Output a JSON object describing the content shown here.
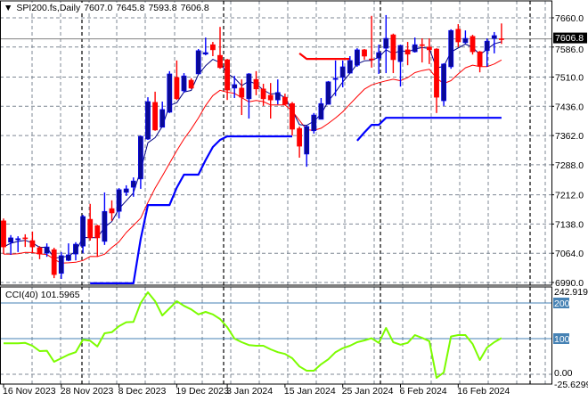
{
  "header": {
    "arrow": "▼",
    "symbol": "SPI200.fs,Daily",
    "open": "7607.0",
    "high": "7645.8",
    "low": "7593.8",
    "close": "7606.8"
  },
  "cci_panel": {
    "name": "CCI(40)",
    "value": "101.5965",
    "max_label": "242.9194",
    "min_label": "-25.6299",
    "zero_label": "0.00",
    "level_200": "200",
    "level_100": "100"
  },
  "current_price_label": "7606.8",
  "colors": {
    "bull": "#0a0a96",
    "bull_wick": "#0000ff",
    "bear": "#ff0000",
    "fast_line": "#000080",
    "slow_line": "#ff0000",
    "stop_blue": "#0000ff",
    "stop_red": "#ff0000",
    "cci": "#7cfc00",
    "level": "#4682b4",
    "grid": "#7f8894"
  },
  "chart_data": {
    "type": "candlestick",
    "title": "SPI200.fs,Daily",
    "ylim": [
      6990,
      7660
    ],
    "price_ticks": [
      "7660.0",
      "7586.0",
      "7510.0",
      "7436.0",
      "7362.0",
      "7288.0",
      "7212.0",
      "7138.0",
      "7064.0",
      "6990.0"
    ],
    "price_tick_values": [
      7660,
      7586,
      7510,
      7436,
      7362,
      7288,
      7212,
      7138,
      7064,
      6990
    ],
    "date_labels": [
      {
        "label": "16 Nov 2023",
        "index": 0
      },
      {
        "label": "28 Nov 2023",
        "index": 8
      },
      {
        "label": "8 Dec 2023",
        "index": 16
      },
      {
        "label": "19 Dec 2023",
        "index": 24
      },
      {
        "label": "3 Jan 2024",
        "index": 31
      },
      {
        "label": "15 Jan 2024",
        "index": 39
      },
      {
        "label": "25 Jan 2024",
        "index": 47
      },
      {
        "label": "6 Feb 2024",
        "index": 55
      },
      {
        "label": "16 Feb 2024",
        "index": 63
      }
    ],
    "candles_ohlc": [
      [
        7146,
        7152,
        7062,
        7080
      ],
      [
        7092,
        7110,
        7060,
        7103
      ],
      [
        7098,
        7107,
        7067,
        7101
      ],
      [
        7103,
        7112,
        7080,
        7101
      ],
      [
        7096,
        7119,
        7064,
        7080
      ],
      [
        7078,
        7082,
        7049,
        7062
      ],
      [
        7064,
        7089,
        7055,
        7080
      ],
      [
        7073,
        7078,
        7001,
        7010
      ],
      [
        7013,
        7067,
        6999,
        7058
      ],
      [
        7046,
        7089,
        7044,
        7060
      ],
      [
        7062,
        7092,
        7046,
        7087
      ],
      [
        7082,
        7161,
        7064,
        7157
      ],
      [
        7150,
        7189,
        7096,
        7103
      ],
      [
        7134,
        7136,
        7055,
        7103
      ],
      [
        7094,
        7218,
        7085,
        7170
      ],
      [
        7177,
        7198,
        7146,
        7166
      ],
      [
        7170,
        7229,
        7152,
        7225
      ],
      [
        7218,
        7236,
        7209,
        7227
      ],
      [
        7231,
        7256,
        7207,
        7247
      ],
      [
        7252,
        7362,
        7227,
        7360
      ],
      [
        7353,
        7459,
        7351,
        7448
      ],
      [
        7446,
        7473,
        7374,
        7376
      ],
      [
        7383,
        7448,
        7383,
        7428
      ],
      [
        7421,
        7525,
        7419,
        7518
      ],
      [
        7509,
        7552,
        7452,
        7455
      ],
      [
        7475,
        7520,
        7471,
        7513
      ],
      [
        7502,
        7507,
        7480,
        7482
      ],
      [
        7518,
        7581,
        7518,
        7577
      ],
      [
        7568,
        7610,
        7565,
        7572
      ],
      [
        7592,
        7599,
        7563,
        7579
      ],
      [
        7565,
        7637,
        7531,
        7534
      ],
      [
        7554,
        7556,
        7452,
        7477
      ],
      [
        7482,
        7513,
        7457,
        7491
      ],
      [
        7482,
        7504,
        7414,
        7459
      ],
      [
        7455,
        7520,
        7405,
        7518
      ],
      [
        7504,
        7525,
        7464,
        7480
      ],
      [
        7480,
        7493,
        7437,
        7455
      ],
      [
        7464,
        7495,
        7405,
        7452
      ],
      [
        7452,
        7504,
        7441,
        7471
      ],
      [
        7459,
        7468,
        7439,
        7441
      ],
      [
        7443,
        7447,
        7362,
        7378
      ],
      [
        7380,
        7385,
        7306,
        7335
      ],
      [
        7315,
        7387,
        7283,
        7385
      ],
      [
        7374,
        7419,
        7367,
        7414
      ],
      [
        7403,
        7457,
        7403,
        7443
      ],
      [
        7441,
        7500,
        7441,
        7498
      ],
      [
        7504,
        7552,
        7462,
        7507
      ],
      [
        7509,
        7552,
        7484,
        7536
      ],
      [
        7520,
        7563,
        7520,
        7552
      ],
      [
        7540,
        7583,
        7536,
        7579
      ],
      [
        7579,
        7581,
        7554,
        7563
      ],
      [
        7556,
        7665,
        7534,
        7554
      ],
      [
        7558,
        7592,
        7518,
        7572
      ],
      [
        7583,
        7667,
        7520,
        7608
      ],
      [
        7617,
        7620,
        7520,
        7554
      ],
      [
        7549,
        7592,
        7486,
        7590
      ],
      [
        7579,
        7599,
        7540,
        7568
      ],
      [
        7574,
        7610,
        7572,
        7592
      ],
      [
        7592,
        7608,
        7547,
        7590
      ],
      [
        7586,
        7608,
        7543,
        7579
      ],
      [
        7581,
        7583,
        7419,
        7459
      ],
      [
        7450,
        7545,
        7437,
        7543
      ],
      [
        7536,
        7631,
        7531,
        7628
      ],
      [
        7631,
        7644,
        7586,
        7599
      ],
      [
        7597,
        7628,
        7595,
        7608
      ],
      [
        7613,
        7617,
        7567,
        7574
      ],
      [
        7574,
        7576,
        7522,
        7538
      ],
      [
        7577,
        7608,
        7536,
        7601
      ],
      [
        7608,
        7624,
        7570,
        7615
      ],
      [
        7607.0,
        7645.8,
        7593.8,
        7606.8
      ]
    ],
    "stop_blue": [
      null,
      null,
      null,
      null,
      null,
      null,
      null,
      null,
      null,
      null,
      null,
      null,
      6988,
      6988,
      6988,
      6988,
      6988,
      6988,
      6988,
      7100,
      7186,
      7186,
      7186,
      7186,
      7230,
      7263,
      7263,
      7263,
      7300,
      7333,
      7351,
      7360,
      7360,
      7360,
      7360,
      7360,
      7360,
      7360,
      7360,
      7360,
      7360,
      null,
      null,
      null,
      null,
      null,
      null,
      null,
      null,
      7349,
      7370,
      7389,
      7389,
      7407,
      7407,
      7407,
      7407,
      7407,
      7407,
      7407,
      7407,
      7407,
      7407,
      7407,
      7407,
      7407,
      7407,
      7407,
      7407,
      7407
    ],
    "stop_red": [
      null,
      null,
      null,
      null,
      null,
      null,
      null,
      null,
      null,
      null,
      null,
      null,
      null,
      null,
      null,
      null,
      null,
      null,
      null,
      null,
      null,
      null,
      null,
      null,
      null,
      null,
      null,
      null,
      null,
      null,
      null,
      null,
      null,
      null,
      null,
      null,
      null,
      null,
      null,
      null,
      null,
      7570,
      7556,
      7556,
      7556,
      7556,
      7556,
      7556,
      7556,
      null,
      null,
      null,
      null,
      null,
      null,
      null,
      null,
      null,
      null,
      null,
      null,
      null,
      null,
      null,
      null,
      null,
      null,
      null,
      null,
      null
    ],
    "cci": {
      "name": "CCI(40)",
      "ylim": [
        -25.6299,
        242.9194
      ],
      "levels": [
        200,
        100,
        0
      ],
      "values": [
        87,
        87,
        87,
        88,
        80,
        65,
        66,
        35,
        45,
        55,
        62,
        97,
        94,
        78,
        115,
        118,
        135,
        146,
        147,
        200,
        230,
        205,
        165,
        185,
        205,
        192,
        182,
        168,
        175,
        168,
        155,
        132,
        100,
        90,
        82,
        80,
        80,
        70,
        62,
        57,
        45,
        22,
        10,
        10,
        28,
        42,
        62,
        73,
        80,
        90,
        95,
        101,
        88,
        130,
        90,
        83,
        88,
        110,
        102,
        93,
        -10,
        5,
        106,
        110,
        110,
        85,
        40,
        75,
        90,
        101.5965
      ]
    }
  }
}
